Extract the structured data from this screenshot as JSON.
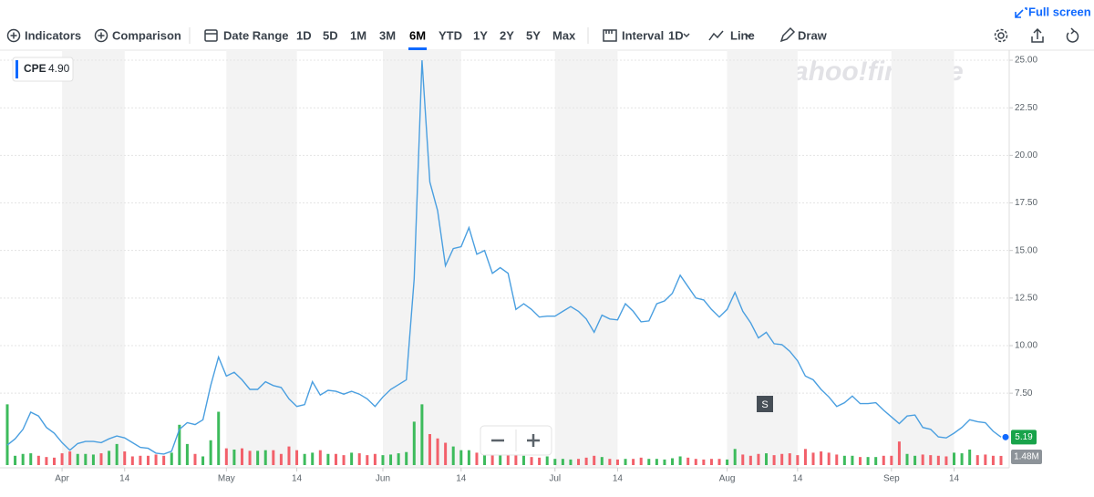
{
  "toolbar": {
    "full_screen": "Full screen",
    "indicators": "Indicators",
    "comparison": "Comparison",
    "date_range": "Date Range",
    "ranges": [
      "1D",
      "5D",
      "1M",
      "3M",
      "6M",
      "YTD",
      "1Y",
      "2Y",
      "5Y",
      "Max"
    ],
    "selected_range": "6M",
    "interval": "Interval",
    "interval_value": "1D",
    "chart_style": "Line",
    "draw": "Draw"
  },
  "watermark": "yahoo!finance",
  "chart_data": {
    "type": "line",
    "legend": {
      "symbol": "CPE",
      "value": "4.90"
    },
    "price_label": "5.19",
    "volume_label": "1.48M",
    "annotations": [
      {
        "text": "S"
      }
    ],
    "categories": [
      null,
      null,
      null,
      null,
      null,
      null,
      null,
      "Apr",
      null,
      null,
      null,
      null,
      null,
      null,
      null,
      "14",
      null,
      null,
      null,
      null,
      null,
      null,
      null,
      null,
      null,
      null,
      null,
      null,
      "May",
      null,
      null,
      null,
      null,
      null,
      null,
      null,
      null,
      "14",
      null,
      null,
      null,
      null,
      null,
      null,
      null,
      null,
      null,
      null,
      "Jun",
      null,
      null,
      null,
      null,
      null,
      null,
      null,
      null,
      null,
      "14",
      null,
      null,
      null,
      null,
      null,
      null,
      null,
      null,
      null,
      null,
      null,
      "Jul",
      null,
      null,
      null,
      null,
      null,
      null,
      null,
      "14",
      null,
      null,
      null,
      null,
      null,
      null,
      null,
      null,
      null,
      null,
      null,
      null,
      null,
      "Aug",
      null,
      null,
      null,
      null,
      null,
      null,
      null,
      null,
      "14",
      null,
      null,
      null,
      null,
      null,
      null,
      null,
      null,
      null,
      null,
      null,
      "Sep",
      null,
      null,
      null,
      null,
      null,
      null,
      null,
      "14",
      null,
      null,
      null,
      null,
      null,
      null
    ],
    "series": [
      {
        "name": "CPE",
        "color": "#4a9fe0",
        "values": [
          4.77,
          5.1,
          5.6,
          6.5,
          6.3,
          5.7,
          5.4,
          4.9,
          4.5,
          4.85,
          4.96,
          4.96,
          4.9,
          5.1,
          5.25,
          5.15,
          4.9,
          4.65,
          4.6,
          4.35,
          4.3,
          4.45,
          5.6,
          5.95,
          5.85,
          6.1,
          7.9,
          9.4,
          8.4,
          8.6,
          8.2,
          7.7,
          7.7,
          8.1,
          7.9,
          7.8,
          7.2,
          6.8,
          6.9,
          8.1,
          7.4,
          7.65,
          7.6,
          7.45,
          7.6,
          7.45,
          7.2,
          6.8,
          7.3,
          7.7,
          7.95,
          8.2,
          13.5,
          25.0,
          18.6,
          17.1,
          14.2,
          15.1,
          15.2,
          16.2,
          14.8,
          15.0,
          13.8,
          14.1,
          13.8,
          11.9,
          12.2,
          11.9,
          11.5,
          11.55,
          11.55,
          11.8,
          12.05,
          11.8,
          11.4,
          10.7,
          11.6,
          11.4,
          11.35,
          12.2,
          11.8,
          11.25,
          11.3,
          12.2,
          12.35,
          12.75,
          13.7,
          13.1,
          12.5,
          12.4,
          11.9,
          11.5,
          11.9,
          12.8,
          11.8,
          11.2,
          10.4,
          10.7,
          10.1,
          10.05,
          9.7,
          9.2,
          8.4,
          8.2,
          7.7,
          7.3,
          6.8,
          7.0,
          7.35,
          6.95,
          6.95,
          7.0,
          6.6,
          6.25,
          5.9,
          6.3,
          6.35,
          5.7,
          5.6,
          5.2,
          5.15,
          5.4,
          5.7,
          6.1,
          6.0,
          5.95,
          5.5,
          5.19
        ]
      },
      {
        "name": "Volume",
        "axis": "y2",
        "up_color": "#3dbb5c",
        "down_color": "#f2606a",
        "values": [
          9.8,
          1.5,
          1.8,
          1.9,
          1.5,
          1.3,
          1.2,
          1.9,
          2.2,
          1.8,
          1.8,
          1.7,
          1.9,
          2.3,
          3.4,
          2.2,
          1.4,
          1.5,
          1.5,
          1.7,
          1.5,
          2.0,
          6.5,
          3.4,
          1.8,
          1.4,
          4.0,
          8.6,
          2.7,
          2.5,
          2.7,
          2.3,
          2.3,
          2.4,
          2.4,
          1.8,
          3.0,
          2.4,
          1.8,
          2.0,
          2.4,
          1.8,
          1.8,
          1.6,
          2.0,
          1.9,
          1.6,
          1.8,
          1.6,
          1.7,
          1.9,
          2.1,
          7.0,
          9.8,
          5.0,
          4.3,
          3.6,
          3.0,
          2.4,
          2.4,
          2.0,
          2.3,
          1.8,
          2.0,
          1.8,
          2.3,
          1.5,
          1.3,
          1.2,
          1.4,
          1.0,
          1.0,
          0.9,
          1.0,
          1.2,
          1.5,
          1.3,
          1.0,
          0.9,
          1.0,
          1.0,
          1.2,
          1.0,
          1.0,
          0.9,
          1.1,
          1.4,
          1.2,
          1.0,
          0.9,
          1.0,
          1.0,
          0.9,
          2.6,
          1.7,
          1.5,
          1.8,
          1.9,
          1.6,
          1.8,
          1.9,
          1.6,
          2.6,
          2.0,
          2.2,
          2.0,
          1.7,
          1.5,
          1.5,
          1.3,
          1.3,
          1.3,
          1.5,
          1.5,
          3.8,
          1.8,
          1.5,
          1.7,
          1.6,
          1.5,
          1.4,
          2.0,
          1.9,
          2.5,
          1.6,
          1.7,
          1.5,
          1.48
        ]
      }
    ],
    "ylim": [
      3.72,
      25.53
    ],
    "yticks": [
      {
        "value": 7.5,
        "label": "7.50"
      },
      {
        "value": 10,
        "label": "10.00"
      },
      {
        "value": 12.5,
        "label": "12.50"
      },
      {
        "value": 15,
        "label": "15.00"
      },
      {
        "value": 17.5,
        "label": "17.50"
      },
      {
        "value": 20,
        "label": "20.00"
      },
      {
        "value": 22.5,
        "label": "22.50"
      },
      {
        "value": 25,
        "label": "25.00"
      }
    ],
    "y2lim": [
      0,
      10
    ],
    "grid": true
  }
}
